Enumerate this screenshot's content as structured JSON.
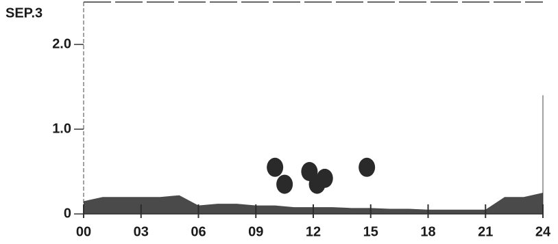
{
  "chart_data": {
    "type": "area",
    "title": "SEP.3",
    "x": [
      0,
      1,
      2,
      3,
      4,
      5,
      6,
      7,
      8,
      9,
      10,
      11,
      12,
      13,
      14,
      15,
      16,
      17,
      18,
      19,
      20,
      21,
      22,
      23,
      24
    ],
    "series": [
      {
        "color": "#2a2a2a",
        "values": [
          0.15,
          0.2,
          0.2,
          0.2,
          0.2,
          0.22,
          0.1,
          0.12,
          0.12,
          0.1,
          0.1,
          0.08,
          0.08,
          0.08,
          0.07,
          0.07,
          0.06,
          0.06,
          0.05,
          0.05,
          0.05,
          0.05,
          0.2,
          0.2,
          0.25
        ]
      },
      {
        "type": "scatter",
        "color": "#2a2a2a",
        "x": [
          10,
          10.5,
          11.8,
          12.2,
          12.6,
          14.8
        ],
        "values": [
          0.55,
          0.35,
          0.5,
          0.35,
          0.42,
          0.55
        ]
      }
    ],
    "xlim": [
      0,
      24
    ],
    "xticks": [
      {
        "value": 0,
        "label": "00"
      },
      {
        "value": 3,
        "label": "03"
      },
      {
        "value": 6,
        "label": "06"
      },
      {
        "value": 9,
        "label": "09"
      },
      {
        "value": 12,
        "label": "12"
      },
      {
        "value": 15,
        "label": "15"
      },
      {
        "value": 18,
        "label": "18"
      },
      {
        "value": 21,
        "label": "21"
      },
      {
        "value": 24,
        "label": "24"
      }
    ],
    "ylim": [
      0,
      2.5
    ],
    "yticks": [
      0,
      {
        "value": 1,
        "label": "1.0"
      },
      {
        "value": 2,
        "label": "2.0"
      }
    ]
  }
}
